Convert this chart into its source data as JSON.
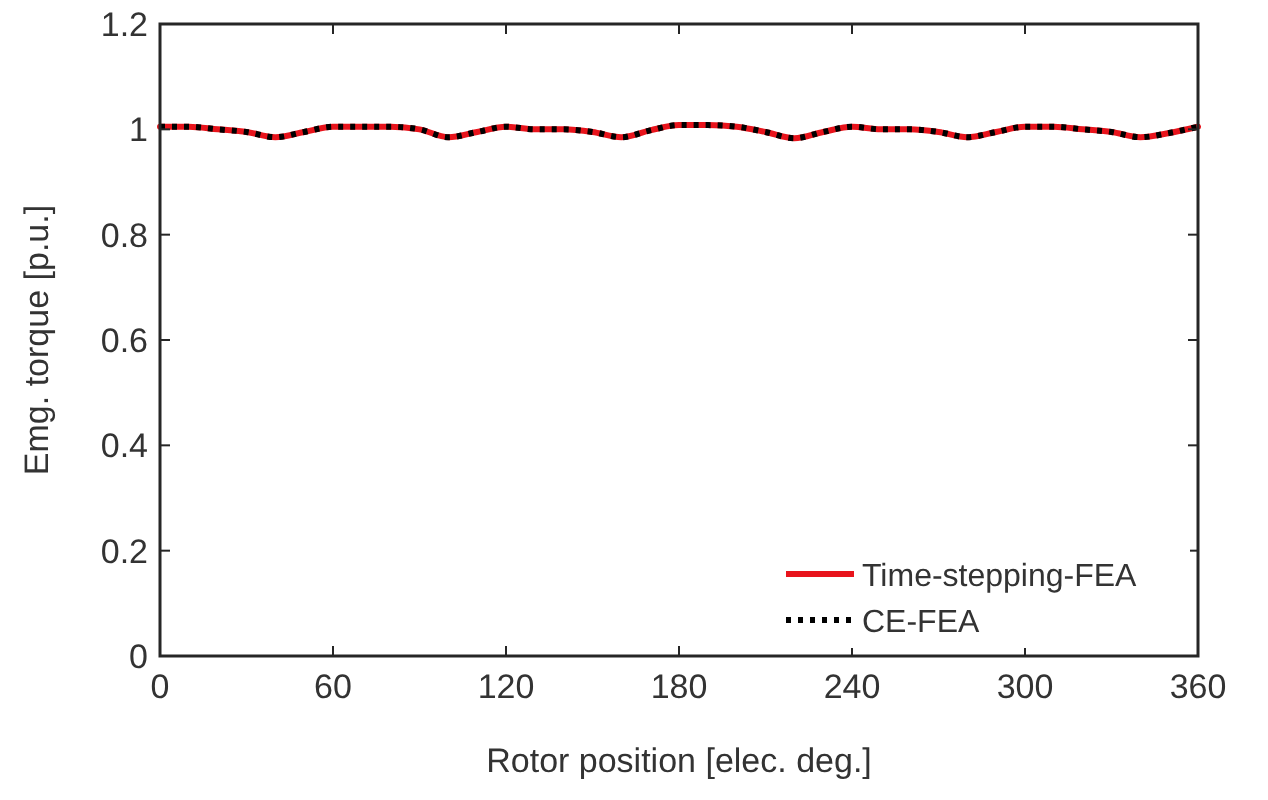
{
  "chart_data": {
    "type": "line",
    "xlabel": "Rotor position [elec. deg.]",
    "ylabel": "Emg. torque [p.u.]",
    "x": [
      0,
      10,
      20,
      30,
      40,
      50,
      60,
      70,
      80,
      90,
      100,
      110,
      120,
      130,
      140,
      150,
      160,
      170,
      180,
      190,
      200,
      210,
      220,
      230,
      240,
      250,
      260,
      270,
      280,
      290,
      300,
      310,
      320,
      330,
      340,
      350,
      360
    ],
    "series": [
      {
        "name": "Time-stepping-FEA",
        "color": "#e8141c",
        "line_style": "solid",
        "values": [
          1.005,
          1.005,
          1.0,
          0.995,
          0.985,
          0.995,
          1.005,
          1.005,
          1.005,
          1.0,
          0.985,
          0.995,
          1.005,
          1.0,
          1.0,
          0.995,
          0.985,
          0.998,
          1.008,
          1.008,
          1.005,
          0.995,
          0.983,
          0.995,
          1.005,
          1.0,
          1.0,
          0.995,
          0.985,
          0.995,
          1.005,
          1.005,
          1.0,
          0.995,
          0.985,
          0.993,
          1.005
        ]
      },
      {
        "name": "CE-FEA",
        "color": "#000000",
        "line_style": "dotted",
        "values": [
          1.005,
          1.005,
          1.0,
          0.995,
          0.985,
          0.995,
          1.005,
          1.005,
          1.005,
          1.0,
          0.985,
          0.995,
          1.005,
          1.0,
          1.0,
          0.995,
          0.985,
          0.998,
          1.008,
          1.008,
          1.005,
          0.995,
          0.983,
          0.995,
          1.005,
          1.0,
          1.0,
          0.995,
          0.985,
          0.995,
          1.005,
          1.005,
          1.0,
          0.995,
          0.985,
          0.993,
          1.005
        ]
      }
    ],
    "xlim": [
      0,
      360
    ],
    "xticks": [
      0,
      60,
      120,
      180,
      240,
      300,
      360
    ],
    "ylim": [
      0,
      1.2
    ],
    "yticks": [
      0,
      0.2,
      0.4,
      0.6,
      0.8,
      1,
      1.2
    ],
    "grid": false,
    "legend": "bottom right"
  }
}
